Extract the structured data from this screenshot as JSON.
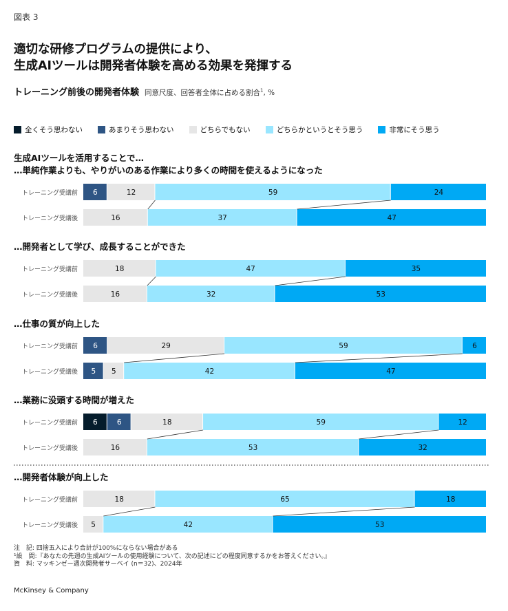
{
  "exhibit_label": "図表 3",
  "title_line1": "適切な研修プログラムの提供により、",
  "title_line2": "生成AIツールは開発者体験を高める効果を発揮する",
  "subtitle": "トレーニング前後の開発者体験",
  "unit_text": "同意尺度、回答者全体に占める割合",
  "unit_sup": "1",
  "unit_suffix": ", %",
  "prompt": "生成AIツールを活用することで…",
  "notes": [
    "注　記: 四捨五入により合計が100%にならない場合がある",
    "¹設　問:『あなたの先週の生成AIツールの使用経験について、次の記述にどの程度同意するかをお答えください。』",
    "資　料: マッキンゼー週次開発者サーベイ (n＝32)、2024年"
  ],
  "brand": "McKinsey & Company",
  "colors": {
    "strongly_disagree": "#051c2c",
    "disagree": "#2e5584",
    "neutral": "#e6e6e6",
    "agree": "#99e6ff",
    "strongly_agree": "#00a9f4"
  },
  "chart_data": {
    "type": "bar",
    "orientation": "horizontal",
    "stacked": true,
    "xlim": [
      0,
      100
    ],
    "legend": [
      "全くそう思わない",
      "あまりそう思わない",
      "どちらでもない",
      "どちらかというとそう思う",
      "非常にそう思う"
    ],
    "legend_placement": "top",
    "groups": [
      {
        "title": "…単純作業よりも、やりがいのある作業により多くの時間を使えるようになった",
        "rows": [
          {
            "label": "トレーニング受講前",
            "values": [
              0,
              6,
              12,
              59,
              24
            ]
          },
          {
            "label": "トレーニング受講後",
            "values": [
              0,
              0,
              16,
              37,
              47
            ]
          }
        ]
      },
      {
        "title": "…開発者として学び、成長することができた",
        "rows": [
          {
            "label": "トレーニング受講前",
            "values": [
              0,
              0,
              18,
              47,
              35
            ]
          },
          {
            "label": "トレーニング受講後",
            "values": [
              0,
              0,
              16,
              32,
              53
            ]
          }
        ]
      },
      {
        "title": "…仕事の質が向上した",
        "rows": [
          {
            "label": "トレーニング受講前",
            "values": [
              0,
              6,
              29,
              59,
              6
            ]
          },
          {
            "label": "トレーニング受講後",
            "values": [
              0,
              5,
              5,
              42,
              47
            ]
          }
        ]
      },
      {
        "title": "…業務に没頭する時間が増えた",
        "rows": [
          {
            "label": "トレーニング受講前",
            "values": [
              6,
              6,
              18,
              59,
              12
            ]
          },
          {
            "label": "トレーニング受講後",
            "values": [
              0,
              0,
              16,
              53,
              32
            ]
          }
        ]
      },
      {
        "title": "…開発者体験が向上した",
        "rows": [
          {
            "label": "トレーニング受講前",
            "values": [
              0,
              0,
              18,
              65,
              18
            ]
          },
          {
            "label": "トレーニング受講後",
            "values": [
              0,
              0,
              5,
              42,
              53
            ]
          }
        ]
      }
    ]
  }
}
